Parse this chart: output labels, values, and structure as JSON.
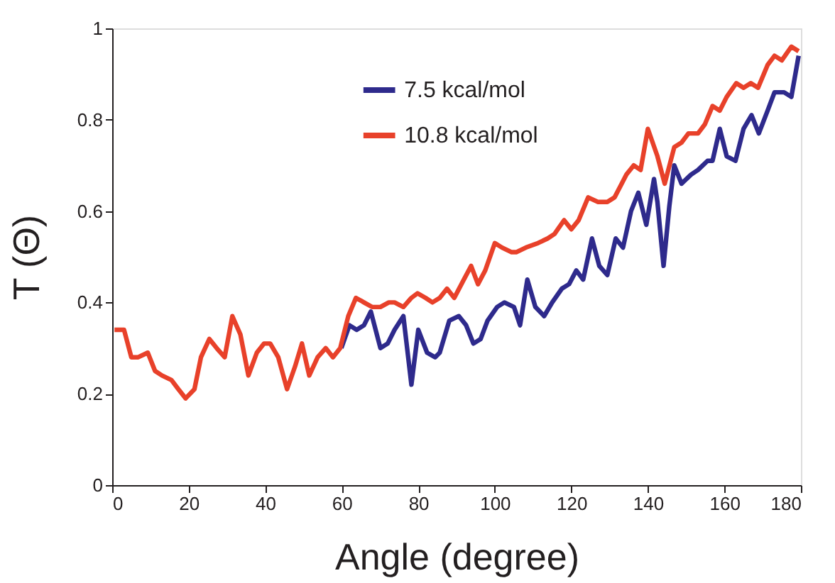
{
  "chart_data": {
    "type": "line",
    "xlabel": "Angle (degree)",
    "ylabel": "T (Θ)",
    "xlim": [
      0,
      180
    ],
    "xticks": [
      0,
      20,
      40,
      60,
      80,
      100,
      120,
      140,
      160,
      180
    ],
    "ylim": [
      0,
      1
    ],
    "yticks": [
      0,
      0.2,
      0.4,
      0.6,
      0.8,
      1
    ],
    "grid": false,
    "legend": "top",
    "marker": "none",
    "line_style": "solid",
    "series": [
      {
        "name": "7.5 kcal/mol",
        "color": "#2e2a8c",
        "x": [
          59.9,
          62,
          63.9,
          65.8,
          67.6,
          70.1,
          72,
          73.8,
          76.1,
          78.2,
          80,
          82.3,
          84.4,
          85.6,
          88.1,
          90.6,
          92.5,
          94.4,
          96.3,
          98.1,
          100.6,
          102.5,
          105,
          106.6,
          108.5,
          110.6,
          112.9,
          115,
          117.5,
          119.4,
          121.3,
          123.1,
          125.4,
          127.3,
          129.4,
          131.6,
          133.5,
          135.6,
          137.5,
          139.6,
          141.6,
          142.5,
          144.1,
          145.6,
          146.9,
          148.8,
          151.3,
          153.1,
          155.6,
          156.9,
          158.8,
          160.6,
          162.9,
          165,
          167.1,
          169,
          171.3,
          173.1,
          175.6,
          177.5,
          179.4
        ],
        "values": [
          0.3,
          0.35,
          0.34,
          0.35,
          0.38,
          0.3,
          0.31,
          0.34,
          0.37,
          0.22,
          0.34,
          0.29,
          0.28,
          0.29,
          0.36,
          0.37,
          0.35,
          0.31,
          0.32,
          0.36,
          0.39,
          0.4,
          0.39,
          0.35,
          0.45,
          0.39,
          0.37,
          0.4,
          0.43,
          0.44,
          0.47,
          0.45,
          0.54,
          0.48,
          0.46,
          0.54,
          0.52,
          0.6,
          0.64,
          0.57,
          0.67,
          0.62,
          0.48,
          0.61,
          0.7,
          0.66,
          0.68,
          0.69,
          0.71,
          0.71,
          0.78,
          0.72,
          0.71,
          0.78,
          0.81,
          0.77,
          0.82,
          0.86,
          0.86,
          0.85,
          0.94
        ]
      },
      {
        "name": "10.8 kcal/mol",
        "color": "#e8412a",
        "x": [
          0.6,
          3.1,
          5,
          6.8,
          9.3,
          11.2,
          13,
          15.5,
          17.3,
          19.2,
          21.5,
          23.2,
          25.4,
          27.3,
          29.4,
          31.4,
          33.5,
          35.6,
          37.8,
          39.7,
          41.3,
          43.4,
          45.7,
          47.8,
          49.6,
          51.5,
          53.7,
          55.8,
          57.7,
          59.6,
          61.7,
          63.7,
          65.8,
          67.9,
          70.1,
          72.3,
          73.8,
          76.1,
          78.2,
          79.8,
          81.9,
          83.7,
          85.6,
          87.5,
          89.4,
          91.9,
          93.8,
          95.6,
          97.5,
          100,
          101.9,
          104.4,
          105.6,
          108.1,
          111.3,
          113.8,
          115.6,
          118.1,
          120,
          121.9,
          124.4,
          126.9,
          129.4,
          131.3,
          134.4,
          136.3,
          138.1,
          140,
          142.5,
          144.4,
          146.9,
          148.8,
          150.6,
          153.1,
          154.9,
          156.9,
          158.8,
          160.6,
          163.1,
          165,
          166.9,
          168.8,
          171.3,
          173.1,
          175,
          177.5,
          179.4
        ],
        "values": [
          0.34,
          0.34,
          0.28,
          0.28,
          0.29,
          0.25,
          0.24,
          0.23,
          0.21,
          0.19,
          0.21,
          0.28,
          0.32,
          0.3,
          0.28,
          0.37,
          0.33,
          0.24,
          0.29,
          0.31,
          0.31,
          0.28,
          0.21,
          0.26,
          0.31,
          0.24,
          0.28,
          0.3,
          0.28,
          0.3,
          0.37,
          0.41,
          0.4,
          0.39,
          0.39,
          0.4,
          0.4,
          0.39,
          0.41,
          0.42,
          0.41,
          0.4,
          0.41,
          0.43,
          0.41,
          0.45,
          0.48,
          0.44,
          0.47,
          0.53,
          0.52,
          0.51,
          0.51,
          0.52,
          0.53,
          0.54,
          0.55,
          0.58,
          0.56,
          0.58,
          0.63,
          0.62,
          0.62,
          0.63,
          0.68,
          0.7,
          0.69,
          0.78,
          0.72,
          0.66,
          0.74,
          0.75,
          0.77,
          0.77,
          0.79,
          0.83,
          0.82,
          0.85,
          0.88,
          0.87,
          0.88,
          0.87,
          0.92,
          0.94,
          0.93,
          0.96,
          0.95
        ]
      }
    ]
  }
}
